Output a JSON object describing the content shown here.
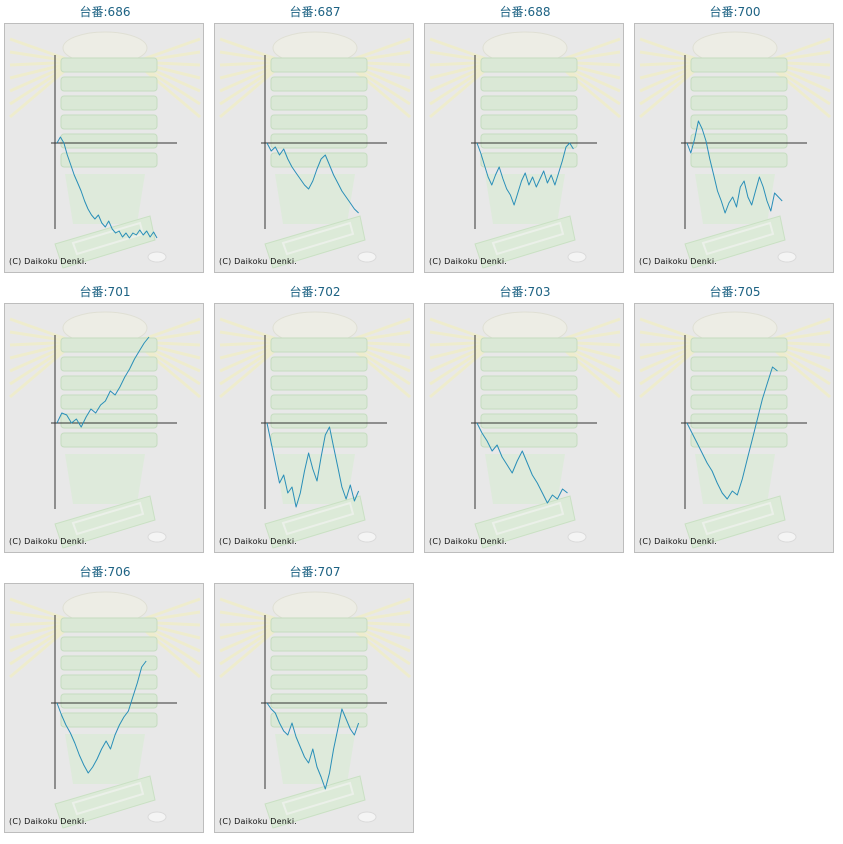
{
  "colors": {
    "line": "#2a8fb8",
    "axis": "#333333",
    "title": "#1d6283",
    "panel_bg": "#e8e8e8"
  },
  "background_image": "pachislot-machine-sunburst",
  "copyright": "(C) Daikoku Denki.",
  "chart_data": [
    {
      "type": "line",
      "title": "台番:686",
      "y": [
        0,
        6,
        0,
        -12,
        -22,
        -32,
        -40,
        -48,
        -58,
        -66,
        -72,
        -76,
        -72,
        -80,
        -84,
        -78,
        -86,
        -90,
        -88,
        -94,
        -90,
        -95,
        -90,
        -92,
        -87,
        -92,
        -88,
        -94,
        -89,
        -95
      ]
    },
    {
      "type": "line",
      "title": "台番:687",
      "y": [
        0,
        -8,
        -4,
        -12,
        -6,
        -16,
        -24,
        -30,
        -36,
        -42,
        -46,
        -38,
        -26,
        -16,
        -12,
        -22,
        -32,
        -40,
        -48,
        -54,
        -60,
        -66,
        -70
      ]
    },
    {
      "type": "line",
      "title": "台番:688",
      "y": [
        0,
        -10,
        -22,
        -34,
        -42,
        -32,
        -24,
        -36,
        -46,
        -52,
        -62,
        -50,
        -38,
        -30,
        -42,
        -34,
        -44,
        -36,
        -28,
        -40,
        -32,
        -42,
        -30,
        -18,
        -4,
        0,
        -6
      ]
    },
    {
      "type": "line",
      "title": "台番:700",
      "y": [
        0,
        -10,
        4,
        22,
        14,
        2,
        -16,
        -32,
        -48,
        -58,
        -70,
        -60,
        -54,
        -64,
        -44,
        -38,
        -54,
        -62,
        -48,
        -34,
        -44,
        -58,
        -68,
        -50,
        -54,
        -58
      ]
    },
    {
      "type": "line",
      "title": "台番:701",
      "y": [
        0,
        10,
        8,
        0,
        4,
        -4,
        6,
        14,
        10,
        18,
        22,
        32,
        28,
        36,
        46,
        54,
        64,
        72,
        80,
        86
      ]
    },
    {
      "type": "line",
      "title": "台番:702",
      "y": [
        0,
        -20,
        -40,
        -60,
        -52,
        -70,
        -64,
        -84,
        -70,
        -48,
        -30,
        -46,
        -58,
        -34,
        -12,
        -4,
        -24,
        -44,
        -64,
        -76,
        -62,
        -78,
        -68
      ]
    },
    {
      "type": "line",
      "title": "台番:703",
      "y": [
        0,
        -10,
        -18,
        -28,
        -22,
        -34,
        -42,
        -50,
        -38,
        -28,
        -40,
        -52,
        -60,
        -70,
        -80,
        -72,
        -76,
        -66,
        -70
      ]
    },
    {
      "type": "line",
      "title": "台番:705",
      "y": [
        0,
        -10,
        -20,
        -30,
        -40,
        -48,
        -60,
        -70,
        -76,
        -68,
        -72,
        -56,
        -36,
        -16,
        4,
        24,
        40,
        56,
        52
      ]
    },
    {
      "type": "line",
      "title": "台番:706",
      "y": [
        0,
        -12,
        -22,
        -30,
        -40,
        -52,
        -62,
        -70,
        -64,
        -56,
        -46,
        -38,
        -46,
        -32,
        -22,
        -14,
        -8,
        6,
        20,
        36,
        42
      ]
    },
    {
      "type": "line",
      "title": "台番:707",
      "y": [
        0,
        -6,
        -10,
        -20,
        -28,
        -32,
        -20,
        -34,
        -44,
        -54,
        -60,
        -46,
        -64,
        -74,
        -86,
        -70,
        -46,
        -26,
        -6,
        -16,
        -26,
        -32,
        -20
      ]
    }
  ]
}
